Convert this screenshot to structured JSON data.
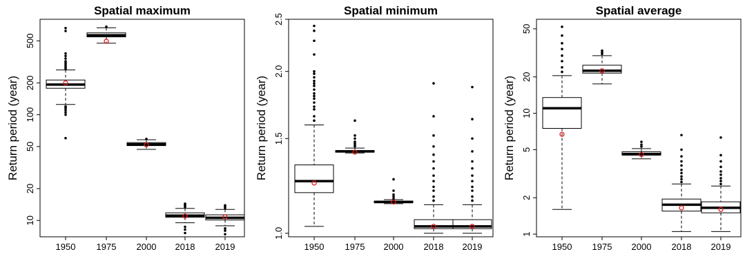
{
  "chart_data": [
    {
      "type": "box",
      "title": "Spatial maximum",
      "ylabel": "Return period (year)",
      "yscale": "log",
      "ylim": [
        7,
        800
      ],
      "yticks": [
        10,
        20,
        50,
        100,
        200,
        500
      ],
      "categories": [
        "1950",
        "1975",
        "2000",
        "2018",
        "2019"
      ],
      "boxes": [
        {
          "whislo": 125,
          "q1": 178,
          "med": 193,
          "q3": 213,
          "whishi": 265,
          "mean": 200,
          "outliers": [
            60,
            100,
            105,
            110,
            115,
            118,
            120,
            270,
            280,
            290,
            300,
            310,
            320,
            340,
            360,
            380,
            620,
            660
          ]
        },
        {
          "whislo": 475,
          "q1": 545,
          "med": 565,
          "q3": 595,
          "whishi": 665,
          "mean": 495,
          "outliers": [
            680
          ]
        },
        {
          "whislo": 47,
          "q1": 51,
          "med": 52.5,
          "q3": 54.5,
          "whishi": 58,
          "mean": 52,
          "outliers": [
            59
          ]
        },
        {
          "whislo": 9.5,
          "q1": 10.7,
          "med": 11.1,
          "q3": 11.8,
          "whishi": 13,
          "mean": 11,
          "outliers": [
            7.6,
            8.2,
            8.7,
            13.4,
            13.8,
            14.1,
            14.4
          ]
        },
        {
          "whislo": 8.9,
          "q1": 10.1,
          "med": 10.6,
          "q3": 11.3,
          "whishi": 12.7,
          "mean": 10.8,
          "outliers": [
            7.4,
            8.0,
            8.4,
            13.1,
            13.5,
            13.9
          ]
        }
      ]
    },
    {
      "type": "box",
      "title": "Spatial minimum",
      "ylabel": "Return period (year)",
      "yscale": "log",
      "ylim": [
        0.985,
        2.5
      ],
      "yticks": [
        1.0,
        1.5,
        2.0,
        2.5
      ],
      "yticklabels": [
        "1.0",
        "1.5",
        "2.0",
        "2.5"
      ],
      "categories": [
        "1950",
        "1975",
        "2000",
        "2018",
        "2019"
      ],
      "boxes": [
        {
          "whislo": 1.03,
          "q1": 1.19,
          "med": 1.25,
          "q3": 1.34,
          "whishi": 1.59,
          "mean": 1.24,
          "outliers": [
            1.62,
            1.65,
            1.7,
            1.72,
            1.75,
            1.78,
            1.8,
            1.82,
            1.85,
            1.88,
            1.9,
            1.92,
            1.95,
            1.98,
            2.0,
            2.15,
            2.28,
            2.38,
            2.43
          ]
        },
        {
          "whislo": 1.41,
          "q1": 1.415,
          "med": 1.42,
          "q3": 1.425,
          "whishi": 1.44,
          "mean": 1.415,
          "outliers": [
            1.45,
            1.46,
            1.47,
            1.48,
            1.5,
            1.52,
            1.62
          ]
        },
        {
          "whislo": 1.135,
          "q1": 1.14,
          "med": 1.143,
          "q3": 1.148,
          "whishi": 1.155,
          "mean": 1.143,
          "outliers": [
            1.16,
            1.17,
            1.18,
            1.2,
            1.26
          ]
        },
        {
          "whislo": 1.0,
          "q1": 1.02,
          "med": 1.03,
          "q3": 1.06,
          "whishi": 1.13,
          "mean": 1.03,
          "outliers": [
            1.15,
            1.17,
            1.2,
            1.22,
            1.25,
            1.28,
            1.32,
            1.36,
            1.4,
            1.45,
            1.52,
            1.65,
            1.9
          ]
        },
        {
          "whislo": 1.0,
          "q1": 1.02,
          "med": 1.03,
          "q3": 1.06,
          "whishi": 1.13,
          "mean": 1.03,
          "outliers": [
            1.15,
            1.17,
            1.2,
            1.22,
            1.25,
            1.28,
            1.32,
            1.36,
            1.42,
            1.5,
            1.63,
            1.87
          ]
        }
      ]
    },
    {
      "type": "box",
      "title": "Spatial average",
      "ylabel": "Return period (year)",
      "yscale": "log",
      "ylim": [
        0.95,
        60
      ],
      "yticks": [
        1,
        2,
        5,
        10,
        20,
        50
      ],
      "categories": [
        "1950",
        "1975",
        "2000",
        "2018",
        "2019"
      ],
      "boxes": [
        {
          "whislo": 1.6,
          "q1": 7.5,
          "med": 11,
          "q3": 13.5,
          "whishi": 20.5,
          "mean": 6.7,
          "outliers": [
            22,
            24,
            27,
            30,
            34,
            38,
            44,
            52
          ]
        },
        {
          "whislo": 17.5,
          "q1": 21.5,
          "med": 22.5,
          "q3": 25,
          "whishi": 30,
          "mean": 22.5,
          "outliers": [
            31,
            32,
            33
          ]
        },
        {
          "whislo": 4.2,
          "q1": 4.5,
          "med": 4.6,
          "q3": 4.8,
          "whishi": 5.1,
          "mean": 4.55,
          "outliers": [
            5.3,
            5.5,
            5.8
          ]
        },
        {
          "whislo": 1.05,
          "q1": 1.55,
          "med": 1.75,
          "q3": 1.95,
          "whishi": 2.6,
          "mean": 1.65,
          "outliers": [
            2.7,
            2.85,
            3.0,
            3.2,
            3.4,
            3.7,
            4.0,
            4.4,
            5.0,
            6.6
          ]
        },
        {
          "whislo": 1.05,
          "q1": 1.5,
          "med": 1.65,
          "q3": 1.85,
          "whishi": 2.5,
          "mean": 1.6,
          "outliers": [
            2.6,
            2.75,
            2.9,
            3.1,
            3.3,
            3.6,
            4.0,
            4.5,
            6.3
          ]
        }
      ]
    }
  ]
}
